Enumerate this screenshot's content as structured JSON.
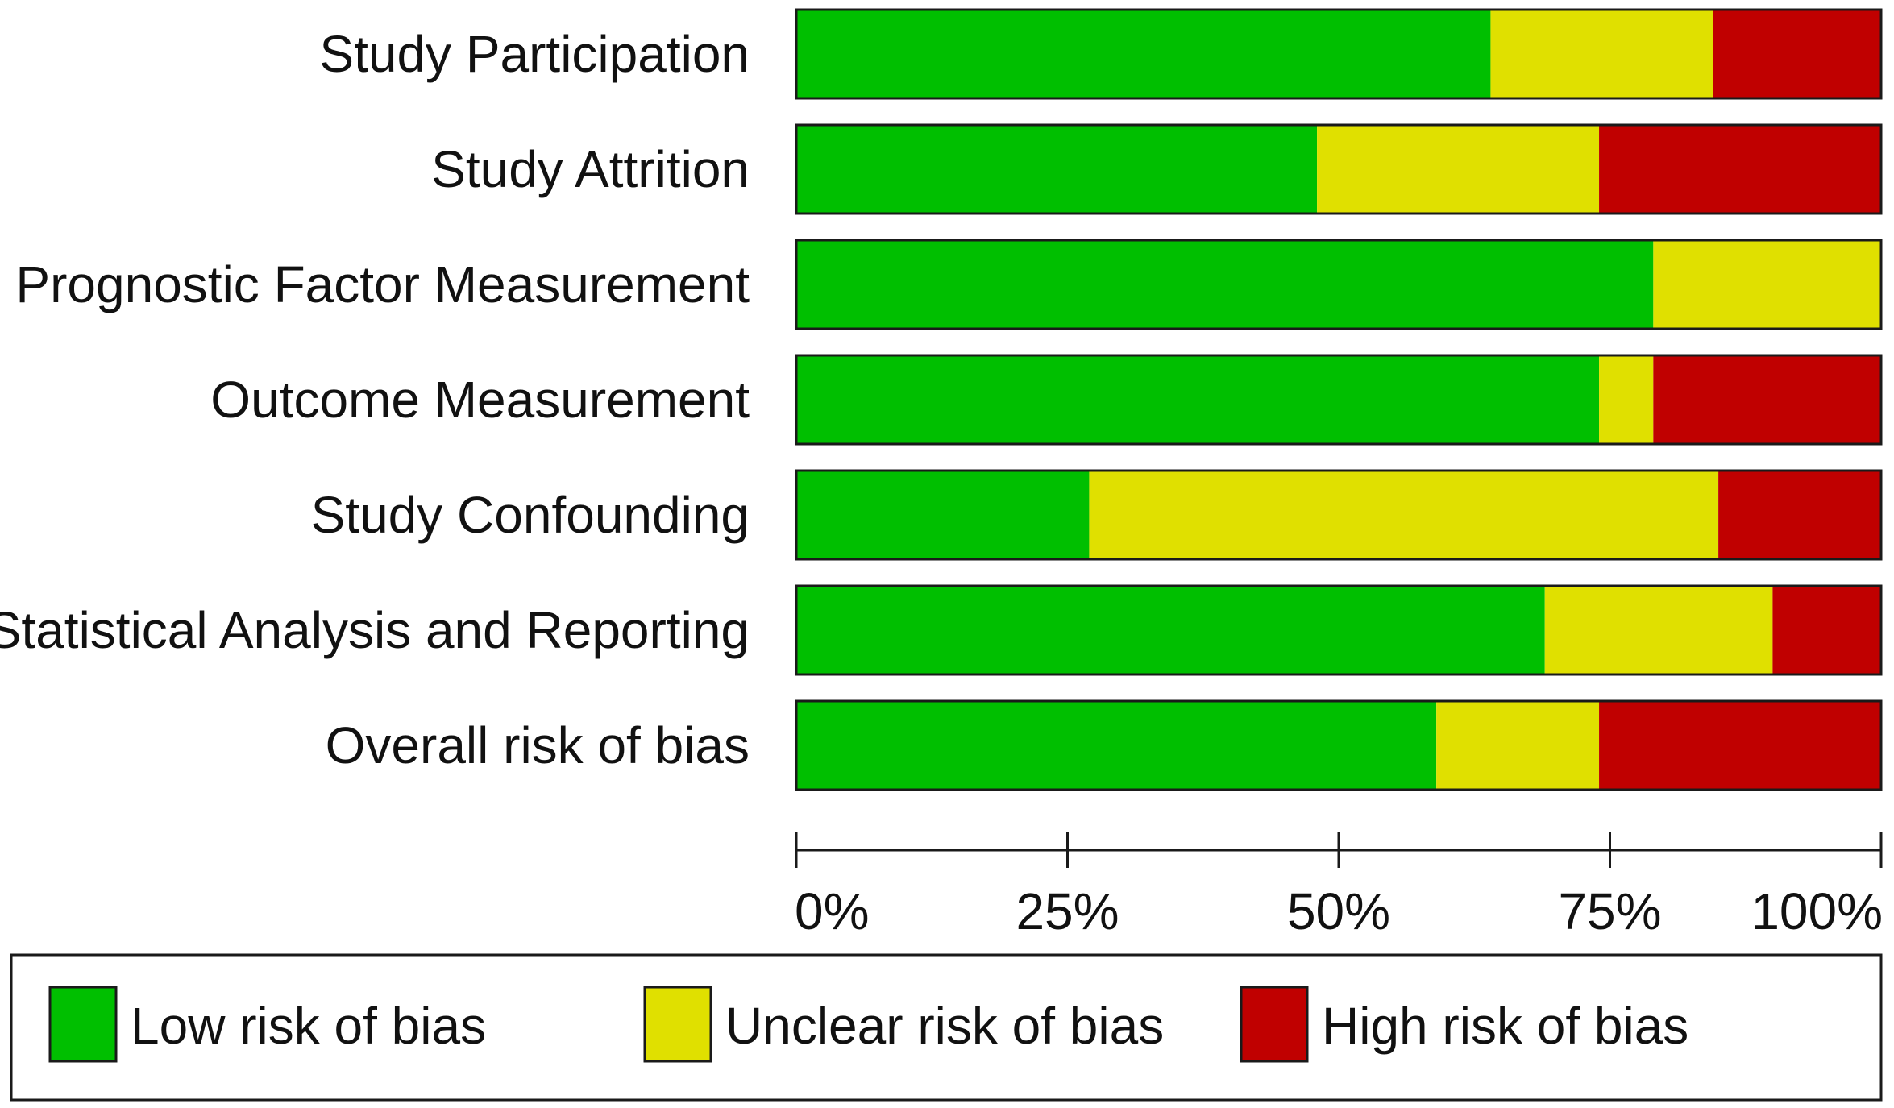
{
  "chart_data": {
    "type": "bar",
    "orientation": "horizontal",
    "stacked": true,
    "normalized_percent": true,
    "categories": [
      "Study Participation",
      "Study Attrition",
      "Prognostic Factor Measurement",
      "Outcome Measurement",
      "Study Confounding",
      "Statistical Analysis and Reporting",
      "Overall risk of bias"
    ],
    "series": [
      {
        "name": "Low risk of bias",
        "color": "#00BF00",
        "values": [
          64,
          48,
          79,
          74,
          27,
          69,
          59
        ]
      },
      {
        "name": "Unclear risk of bias",
        "color": "#E0E000",
        "values": [
          20.5,
          26,
          21,
          5,
          58,
          21,
          15
        ]
      },
      {
        "name": "High risk of bias",
        "color": "#C00000",
        "values": [
          15.5,
          26,
          0,
          21,
          15,
          10,
          26
        ]
      }
    ],
    "xlim": [
      0,
      100
    ],
    "xticks": [
      0,
      25,
      50,
      75,
      100
    ],
    "xtick_labels": [
      "0%",
      "25%",
      "50%",
      "75%",
      "100%"
    ],
    "title": "",
    "xlabel": "",
    "ylabel": "",
    "grid": false,
    "legend_position": "bottom"
  }
}
